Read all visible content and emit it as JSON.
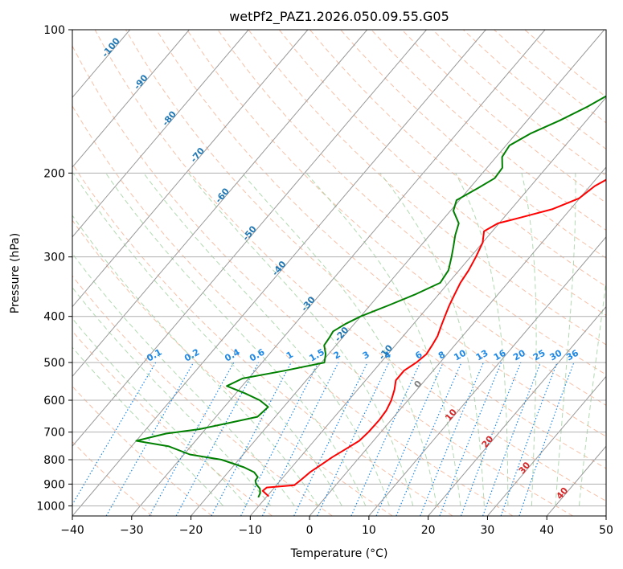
{
  "chart_data": {
    "type": "line",
    "title": "wetPf2_PAZ1.2026.050.09.55.G05",
    "xlabel": "Temperature (°C)",
    "ylabel": "Pressure (hPa)",
    "xlim": [
      -40,
      50
    ],
    "ylim": [
      1050,
      100
    ],
    "y_scale": "log",
    "grid": true,
    "x_ticks": [
      "−40",
      "−30",
      "−20",
      "−10",
      "0",
      "10",
      "20",
      "30",
      "40",
      "50"
    ],
    "x_tick_values": [
      -40,
      -30,
      -20,
      -10,
      0,
      10,
      20,
      30,
      40,
      50
    ],
    "y_ticks": [
      "100",
      "200",
      "300",
      "400",
      "500",
      "600",
      "700",
      "800",
      "900",
      "1000"
    ],
    "y_tick_values": [
      100,
      200,
      300,
      400,
      500,
      600,
      700,
      800,
      900,
      1000
    ],
    "series": [
      {
        "color": "#ff0000",
        "values": [
          [
            955,
            -9.7
          ],
          [
            930,
            -11.5
          ],
          [
            915,
            -11.3
          ],
          [
            905,
            -7.0
          ],
          [
            880,
            -6.6
          ],
          [
            850,
            -6.2
          ],
          [
            820,
            -5.4
          ],
          [
            790,
            -4.6
          ],
          [
            760,
            -3.5
          ],
          [
            730,
            -2.4
          ],
          [
            700,
            -2.1
          ],
          [
            660,
            -2.0
          ],
          [
            630,
            -2.2
          ],
          [
            600,
            -2.8
          ],
          [
            570,
            -3.8
          ],
          [
            545,
            -4.9
          ],
          [
            520,
            -4.9
          ],
          [
            500,
            -4.0
          ],
          [
            480,
            -3.5
          ],
          [
            460,
            -3.8
          ],
          [
            440,
            -4.2
          ],
          [
            420,
            -5.0
          ],
          [
            400,
            -5.8
          ],
          [
            380,
            -6.6
          ],
          [
            360,
            -7.3
          ],
          [
            340,
            -8.0
          ],
          [
            320,
            -8.4
          ],
          [
            300,
            -9.1
          ],
          [
            280,
            -10.0
          ],
          [
            265,
            -11.4
          ],
          [
            255,
            -10.2
          ],
          [
            248,
            -7.2
          ],
          [
            238,
            -3.0
          ],
          [
            226,
            -0.1
          ],
          [
            213,
            0.8
          ],
          [
            200,
            2.9
          ],
          [
            185,
            6.8
          ],
          [
            172,
            10.0
          ],
          [
            160,
            12.0
          ],
          [
            148,
            13.6
          ],
          [
            135,
            15.0
          ],
          [
            125,
            15.8
          ],
          [
            115,
            17.2
          ],
          [
            108,
            18.8
          ],
          [
            100,
            20.8
          ]
        ]
      },
      {
        "color": "#008000",
        "values": [
          [
            960,
            -11.3
          ],
          [
            940,
            -11.6
          ],
          [
            920,
            -12.3
          ],
          [
            900,
            -13.6
          ],
          [
            885,
            -14.2
          ],
          [
            870,
            -14.3
          ],
          [
            850,
            -15.6
          ],
          [
            830,
            -18.0
          ],
          [
            800,
            -22.9
          ],
          [
            780,
            -29.0
          ],
          [
            750,
            -33.7
          ],
          [
            730,
            -40.0
          ],
          [
            705,
            -36.0
          ],
          [
            690,
            -31.0
          ],
          [
            670,
            -27.0
          ],
          [
            650,
            -23.0
          ],
          [
            620,
            -22.6
          ],
          [
            600,
            -25.0
          ],
          [
            580,
            -28.5
          ],
          [
            560,
            -32.6
          ],
          [
            540,
            -31.0
          ],
          [
            520,
            -25.0
          ],
          [
            500,
            -19.5
          ],
          [
            480,
            -20.5
          ],
          [
            460,
            -22.0
          ],
          [
            445,
            -22.2
          ],
          [
            430,
            -22.5
          ],
          [
            415,
            -21.5
          ],
          [
            400,
            -20.0
          ],
          [
            380,
            -17.0
          ],
          [
            360,
            -14.0
          ],
          [
            340,
            -11.4
          ],
          [
            320,
            -11.8
          ],
          [
            300,
            -13.2
          ],
          [
            285,
            -14.4
          ],
          [
            270,
            -15.7
          ],
          [
            255,
            -16.8
          ],
          [
            240,
            -19.5
          ],
          [
            228,
            -20.5
          ],
          [
            215,
            -18.6
          ],
          [
            205,
            -17.2
          ],
          [
            195,
            -17.4
          ],
          [
            185,
            -19.0
          ],
          [
            175,
            -19.4
          ],
          [
            165,
            -17.5
          ],
          [
            155,
            -14.5
          ],
          [
            145,
            -11.8
          ],
          [
            135,
            -9.5
          ],
          [
            125,
            -7.9
          ],
          [
            118,
            -6.0
          ],
          [
            110,
            -4.8
          ],
          [
            103,
            -4.7
          ],
          [
            100,
            -5.0
          ]
        ]
      }
    ],
    "dry_adiabat_labels": [
      "-100",
      "-90",
      "-80",
      "-70",
      "-60",
      "-50",
      "-40",
      "-30",
      "-20",
      "-10",
      "0",
      "10",
      "20",
      "30",
      "40"
    ],
    "mixing_ratio_labels": [
      "0.1",
      "0.2",
      "0.4",
      "0.6",
      "1",
      "1.5",
      "2",
      "3",
      "4",
      "6",
      "8",
      "10",
      "13",
      "16",
      "20",
      "25",
      "30",
      "36"
    ],
    "mixing_ratio_values": [
      0.1,
      0.2,
      0.4,
      0.6,
      1,
      1.5,
      2,
      3,
      4,
      6,
      8,
      10,
      13,
      16,
      20,
      25,
      30,
      36
    ],
    "colors": {
      "temperature": "#ff0000",
      "dewpoint": "#008000",
      "isotherm": "#999999",
      "isobar": "#b0b0b0",
      "dry_adiabat": "#f4a582",
      "moist_adiabat": "#9ecf9e",
      "mixing_ratio": "#1e88e5",
      "dry_label": "#1f77b4",
      "warm_label": "#d62728",
      "zero_label": "#808080"
    }
  }
}
